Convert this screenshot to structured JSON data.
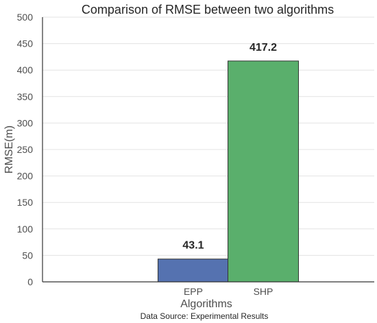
{
  "chart_data": {
    "type": "bar",
    "title": "Comparison of RMSE between two algorithms",
    "xlabel": "Algorithms",
    "ylabel": "RMSE(m)",
    "categories": [
      "EPP",
      "SHP"
    ],
    "values": [
      43.1,
      417.2
    ],
    "data_labels": [
      "43.1",
      "417.2"
    ],
    "colors": [
      "#5572b0",
      "#5aaf6c"
    ],
    "ylim": [
      0,
      500
    ],
    "yticks": [
      0,
      50,
      100,
      150,
      200,
      250,
      300,
      350,
      400,
      450,
      500
    ],
    "grid": true,
    "source_note": "Data Source: Experimental Results"
  }
}
